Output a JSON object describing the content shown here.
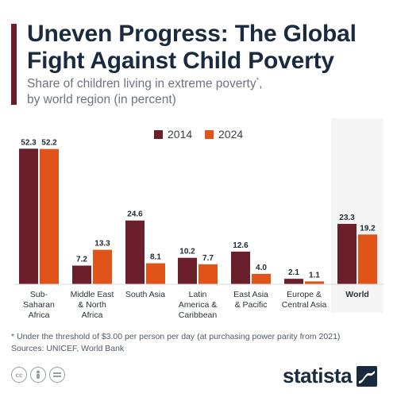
{
  "header": {
    "title_line1": "Uneven Progress: The Global",
    "title_line2": "Fight Against Child Poverty",
    "subtitle_line1": "Share of children living in extreme poverty",
    "subtitle_marker": "*",
    "subtitle_line1_end": ",",
    "subtitle_line2": "by world region (in percent)"
  },
  "colors": {
    "accent": "#6b1f2a",
    "series_2014": "#6b1f2a",
    "series_2024": "#e0541a",
    "title": "#1b2b3f"
  },
  "chart_data": {
    "type": "bar",
    "categories": [
      "Sub-Saharan Africa",
      "Middle East & North Africa",
      "South Asia",
      "Latin America & Caribbean",
      "East Asia & Pacific",
      "Europe & Central Asia",
      "World"
    ],
    "category_lines": [
      [
        "Sub-",
        "Saharan",
        "Africa"
      ],
      [
        "Middle East",
        "& North",
        "Africa"
      ],
      [
        "South Asia"
      ],
      [
        "Latin",
        "America &",
        "Caribbean"
      ],
      [
        "East Asia",
        "& Pacific"
      ],
      [
        "Europe &",
        "Central Asia"
      ],
      [
        "World"
      ]
    ],
    "highlight_category": "World",
    "series": [
      {
        "name": "2014",
        "values": [
          52.3,
          7.2,
          24.6,
          10.2,
          12.6,
          2.1,
          23.3
        ]
      },
      {
        "name": "2024",
        "values": [
          52.2,
          13.3,
          8.1,
          7.7,
          4.0,
          1.1,
          19.2
        ]
      }
    ],
    "value_labels": [
      [
        "52.3",
        "7.2",
        "24.6",
        "10.2",
        "12.6",
        "2.1",
        "23.3"
      ],
      [
        "52.2",
        "13.3",
        "8.1",
        "7.7",
        "4.0",
        "1.1",
        "19.2"
      ]
    ],
    "ylim": [
      0,
      53
    ],
    "legend_position": "top-center",
    "grid": false
  },
  "footer": {
    "footnote": "* Under the threshold of $3.00 per person per day (at purchasing power parity from 2021)",
    "sources": "Sources: UNICEF, World Bank",
    "license_icons": [
      "cc-icon",
      "person-icon",
      "equals-icon"
    ],
    "brand": "statista"
  }
}
